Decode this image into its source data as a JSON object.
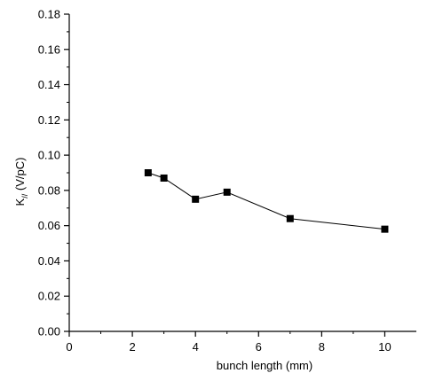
{
  "chart_data": {
    "type": "line",
    "title": "",
    "xlabel": "bunch length (mm)",
    "ylabel_main": "K",
    "ylabel_sub": "//",
    "ylabel_unit": "(V/pC)",
    "xlim": [
      0,
      11
    ],
    "ylim": [
      0,
      0.18
    ],
    "xticks": [
      0,
      2,
      4,
      6,
      8,
      10
    ],
    "xtick_labels": [
      "0",
      "2",
      "4",
      "6",
      "8",
      "10"
    ],
    "yticks": [
      0,
      0.02,
      0.04,
      0.06,
      0.08,
      0.1,
      0.12,
      0.14,
      0.16,
      0.18
    ],
    "ytick_labels": [
      "0.00",
      "0.02",
      "0.04",
      "0.06",
      "0.08",
      "0.10",
      "0.12",
      "0.14",
      "0.16",
      "0.18"
    ],
    "grid": false,
    "marker": "square",
    "series": [
      {
        "x": [
          2.5,
          3,
          4,
          5,
          7,
          10
        ],
        "y": [
          0.09,
          0.087,
          0.075,
          0.079,
          0.064,
          0.058
        ]
      }
    ],
    "colors": {
      "line": "#000000",
      "marker": "#000000",
      "axis": "#000000"
    }
  }
}
